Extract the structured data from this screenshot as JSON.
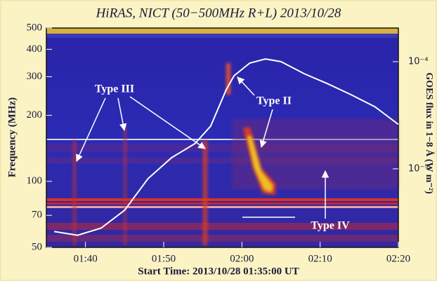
{
  "chart_data": {
    "type": "spectrogram",
    "title": "HiRAS, NICT (50−500MHz R+L)  2013/10/28",
    "xlabel": "Start Time: 2013/10/28 01:35:00 UT",
    "ylabel": "Frequency (MHz)",
    "y2label": "GOES flux in 1−8 Å (W m⁻²)",
    "xlim": [
      "01:35",
      "02:20"
    ],
    "xticks": [
      "01:40",
      "01:50",
      "02:00",
      "02:10",
      "02:20"
    ],
    "ylim": [
      50,
      500
    ],
    "yticks": [
      50,
      70,
      100,
      200,
      300,
      400,
      500
    ],
    "log_y": true,
    "y2lim": [
      1.85e-06,
      0.000206
    ],
    "y2ticks": [
      {
        "value": 0.0001,
        "label": "10⁻⁴"
      },
      {
        "value": 1e-05,
        "label": "10⁻⁵"
      }
    ],
    "log_y2": true,
    "series": [
      {
        "color": "#ffffff",
        "axis": "y2",
        "x": [
          "01:36",
          "01:39",
          "01:42",
          "01:45",
          "01:48",
          "01:51",
          "01:54",
          "01:56",
          "01:58",
          "01:59",
          "02:01",
          "02:03",
          "02:05",
          "02:08",
          "02:11",
          "02:14",
          "02:17",
          "02:20"
        ],
        "values": [
          2.6e-06,
          2.4e-06,
          2.8e-06,
          4.1e-06,
          8.1e-06,
          1.27e-05,
          1.72e-05,
          2.5e-05,
          5.5e-05,
          7.4e-05,
          9.7e-05,
          0.000106,
          0.0001,
          7.7e-05,
          6.2e-05,
          4.9e-05,
          3.8e-05,
          2.6e-05
        ]
      }
    ],
    "annotations": [
      "Type III",
      "Type II",
      "Type IV"
    ]
  }
}
